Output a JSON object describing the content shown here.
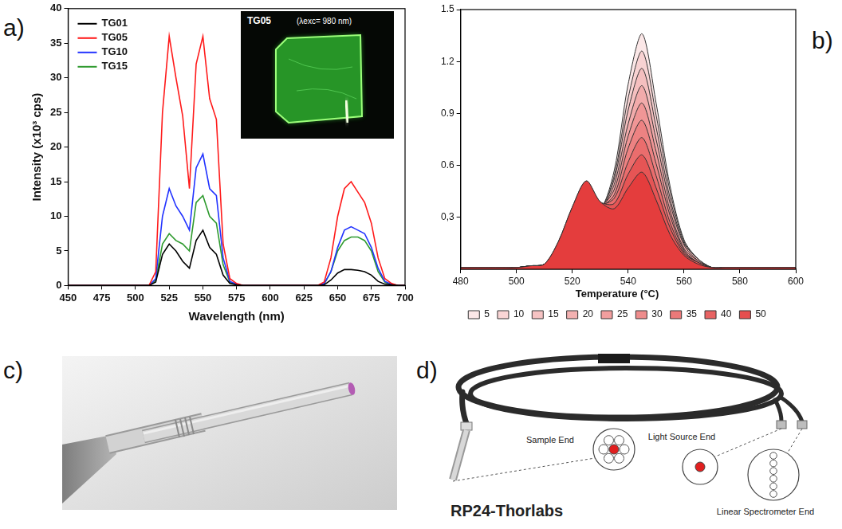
{
  "chart_data": [
    {
      "panel": "a)",
      "type": "line",
      "x_label": "Wavelength (nm)",
      "y_label": "Intensity (x10³ cps)",
      "x": [
        450,
        455,
        460,
        465,
        470,
        475,
        480,
        485,
        490,
        495,
        500,
        505,
        510,
        515,
        520,
        525,
        530,
        535,
        540,
        545,
        550,
        555,
        560,
        565,
        570,
        575,
        580,
        585,
        590,
        595,
        600,
        605,
        610,
        615,
        620,
        625,
        630,
        635,
        640,
        645,
        650,
        655,
        660,
        665,
        670,
        675,
        680,
        685,
        690,
        695,
        700
      ],
      "series": [
        {
          "name": "TG01",
          "color": "#000000",
          "values": [
            0,
            0,
            0,
            0,
            0,
            0,
            0,
            0,
            0,
            0,
            0,
            0,
            0,
            0.5,
            4.5,
            6,
            5,
            3.5,
            2.5,
            6.5,
            8,
            5.5,
            4.5,
            1.5,
            0.3,
            0.1,
            0,
            0,
            0,
            0,
            0,
            0,
            0,
            0,
            0,
            0,
            0,
            0,
            0.1,
            0.8,
            1.8,
            2.3,
            2.3,
            2.2,
            2,
            1.5,
            0.6,
            0.2,
            0.1,
            0,
            0
          ]
        },
        {
          "name": "TG05",
          "color": "#ff1a1a",
          "values": [
            0,
            0,
            0,
            0,
            0,
            0,
            0,
            0,
            0,
            0,
            0,
            0,
            0,
            2,
            25,
            36,
            30,
            24.5,
            14,
            32,
            36,
            27,
            24,
            6,
            1,
            0.3,
            0,
            0,
            0,
            0,
            0,
            0,
            0,
            0,
            0,
            0,
            0,
            0,
            0.5,
            4,
            10,
            14,
            15,
            13.5,
            12,
            9,
            4,
            1,
            0.3,
            0,
            0
          ]
        },
        {
          "name": "TG10",
          "color": "#2233ff",
          "values": [
            0,
            0,
            0,
            0,
            0,
            0,
            0,
            0,
            0,
            0,
            0,
            0,
            0,
            1,
            10,
            14,
            11.5,
            10,
            8,
            17,
            19,
            14,
            13,
            4,
            0.6,
            0.2,
            0,
            0,
            0,
            0,
            0,
            0,
            0,
            0,
            0,
            0,
            0,
            0,
            0.3,
            2,
            5.5,
            8,
            8.5,
            8,
            7.5,
            5.5,
            2.5,
            0.6,
            0.2,
            0,
            0
          ]
        },
        {
          "name": "TG15",
          "color": "#2e9a2e",
          "values": [
            0,
            0,
            0,
            0,
            0,
            0,
            0,
            0,
            0,
            0,
            0,
            0,
            0,
            0.8,
            6,
            7.5,
            6.5,
            6,
            5,
            12,
            13,
            10,
            9,
            3,
            0.5,
            0.1,
            0,
            0,
            0,
            0,
            0,
            0,
            0,
            0,
            0,
            0,
            0,
            0,
            0.2,
            2,
            5,
            6.5,
            7,
            7,
            6.5,
            5,
            2,
            0.5,
            0.1,
            0,
            0
          ]
        }
      ],
      "xlim": [
        450,
        700
      ],
      "xticks": [
        450,
        475,
        500,
        525,
        550,
        575,
        600,
        625,
        650,
        675,
        700
      ],
      "ylim": [
        0,
        40
      ],
      "yticks": [
        0,
        5,
        10,
        15,
        20,
        25,
        30,
        35,
        40
      ],
      "legend": "top-left",
      "grid": false,
      "inset": {
        "label": "TG05",
        "text": "(λexc= 980 nm)"
      }
    },
    {
      "panel": "b)",
      "type": "line",
      "legend_title": "Temperature (°C)",
      "x": [
        480,
        485,
        490,
        495,
        500,
        505,
        510,
        515,
        520,
        525,
        530,
        535,
        540,
        545,
        550,
        555,
        560,
        565,
        570,
        575,
        580,
        585,
        590,
        595,
        600
      ],
      "series": [
        {
          "name": "5",
          "color": "#fbe4e4",
          "values": [
            0.01,
            0.01,
            0.01,
            0.01,
            0.01,
            0.02,
            0.03,
            0.14,
            0.33,
            0.46,
            0.35,
            0.57,
            1.07,
            1.36,
            0.96,
            0.48,
            0.17,
            0.06,
            0.01,
            0.01,
            0.01,
            0.01,
            0.01,
            0.01,
            0.01
          ]
        },
        {
          "name": "10",
          "color": "#f8d0d0",
          "values": [
            0.01,
            0.01,
            0.01,
            0.01,
            0.01,
            0.02,
            0.03,
            0.14,
            0.33,
            0.46,
            0.35,
            0.54,
            0.99,
            1.26,
            0.89,
            0.45,
            0.16,
            0.06,
            0.01,
            0.01,
            0.01,
            0.01,
            0.01,
            0.01,
            0.01
          ]
        },
        {
          "name": "15",
          "color": "#f5bcbc",
          "values": [
            0.01,
            0.01,
            0.01,
            0.01,
            0.01,
            0.02,
            0.03,
            0.15,
            0.33,
            0.47,
            0.36,
            0.52,
            0.92,
            1.16,
            0.82,
            0.41,
            0.15,
            0.06,
            0.01,
            0.01,
            0.01,
            0.01,
            0.01,
            0.01,
            0.01
          ]
        },
        {
          "name": "20",
          "color": "#f2a8a8",
          "values": [
            0.01,
            0.01,
            0.01,
            0.01,
            0.01,
            0.02,
            0.03,
            0.15,
            0.34,
            0.48,
            0.36,
            0.49,
            0.84,
            1.06,
            0.75,
            0.38,
            0.14,
            0.05,
            0.01,
            0.01,
            0.01,
            0.01,
            0.01,
            0.01,
            0.01
          ]
        },
        {
          "name": "25",
          "color": "#ef9494",
          "values": [
            0.01,
            0.01,
            0.01,
            0.01,
            0.01,
            0.02,
            0.03,
            0.15,
            0.35,
            0.49,
            0.37,
            0.46,
            0.77,
            0.96,
            0.68,
            0.34,
            0.12,
            0.05,
            0.01,
            0.01,
            0.01,
            0.01,
            0.01,
            0.01,
            0.01
          ]
        },
        {
          "name": "30",
          "color": "#ec8080",
          "values": [
            0.01,
            0.01,
            0.01,
            0.01,
            0.01,
            0.02,
            0.03,
            0.15,
            0.35,
            0.49,
            0.37,
            0.43,
            0.7,
            0.86,
            0.61,
            0.31,
            0.11,
            0.04,
            0.01,
            0.01,
            0.01,
            0.01,
            0.01,
            0.01,
            0.01
          ]
        },
        {
          "name": "35",
          "color": "#e96a6a",
          "values": [
            0.01,
            0.01,
            0.01,
            0.01,
            0.01,
            0.02,
            0.03,
            0.15,
            0.35,
            0.5,
            0.38,
            0.41,
            0.62,
            0.76,
            0.54,
            0.27,
            0.1,
            0.04,
            0.01,
            0.01,
            0.01,
            0.01,
            0.01,
            0.01,
            0.01
          ]
        },
        {
          "name": "40",
          "color": "#e65252",
          "values": [
            0.01,
            0.01,
            0.01,
            0.01,
            0.01,
            0.02,
            0.03,
            0.16,
            0.36,
            0.51,
            0.39,
            0.38,
            0.55,
            0.66,
            0.47,
            0.24,
            0.09,
            0.04,
            0.01,
            0.01,
            0.01,
            0.01,
            0.01,
            0.01,
            0.01
          ]
        },
        {
          "name": "50",
          "color": "#e33b3b",
          "values": [
            0.01,
            0.01,
            0.01,
            0.01,
            0.01,
            0.02,
            0.03,
            0.16,
            0.36,
            0.51,
            0.39,
            0.35,
            0.47,
            0.56,
            0.4,
            0.2,
            0.08,
            0.03,
            0.01,
            0.01,
            0.01,
            0.01,
            0.01,
            0.01,
            0.01
          ]
        }
      ],
      "xlim": [
        480,
        600
      ],
      "xticks": [
        480,
        500,
        520,
        540,
        560,
        580,
        600
      ],
      "ylim": [
        0,
        1.5
      ],
      "yticks": [
        {
          "value": 0.3,
          "label": "0,3"
        },
        0.6,
        0.9,
        1.2,
        1.5
      ],
      "legend": "bottom",
      "grid": false
    }
  ],
  "images": [
    {
      "panel": "c)"
    },
    {
      "panel": "d)",
      "labels": [
        "Sample End",
        "Light Source End",
        "Linear Spectrometer End"
      ],
      "caption": "RP24-Thorlabs"
    }
  ]
}
